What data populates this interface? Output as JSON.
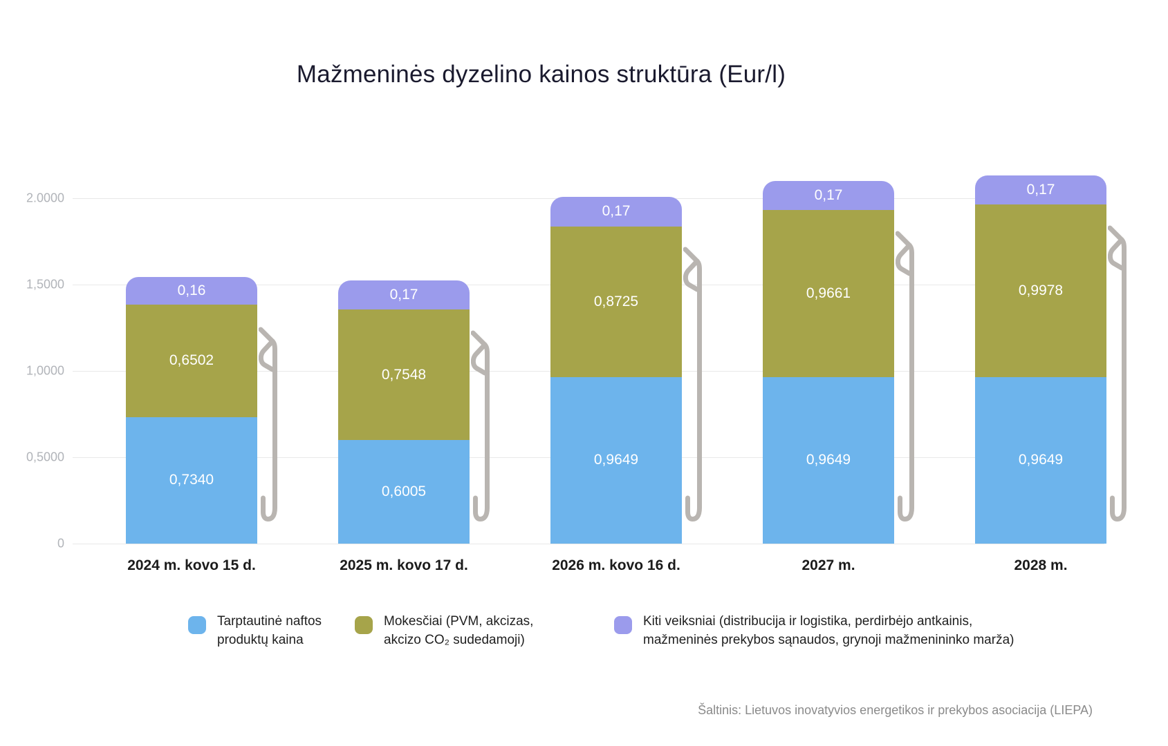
{
  "title": "Mažmeninės dyzelino kainos struktūra (Eur/l)",
  "source": "Šaltinis: Lietuvos inovatyvios energetikos ir prekybos asociacija (LIEPA)",
  "colors": {
    "blue": "#6db4ec",
    "olive": "#a6a44a",
    "purple": "#9b9bec",
    "nozzle": "#b9b5b1",
    "grid": "#e8e8e8"
  },
  "chart_data": {
    "type": "bar",
    "stacked": true,
    "title": "Mažmeninės dyzelino kainos struktūra (Eur/l)",
    "unit": "Eur/l",
    "grid": true,
    "legend_position": "bottom",
    "ylim": [
      0,
      2.0
    ],
    "yticks": [
      {
        "label": "2.0000",
        "value": 2.0
      },
      {
        "label": "1,5000",
        "value": 1.5
      },
      {
        "label": "1,0000",
        "value": 1.0
      },
      {
        "label": "0,5000",
        "value": 0.5
      },
      {
        "label": "0",
        "value": 0
      }
    ],
    "categories": [
      "2024 m. kovo 15 d.",
      "2025 m. kovo 17 d.",
      "2026 m. kovo 16 d.",
      "2027 m.",
      "2028 m."
    ],
    "series": [
      {
        "name": "Tarptautinė naftos produktų kaina",
        "color": "#6db4ec",
        "values": [
          0.734,
          0.6005,
          0.9649,
          0.9649,
          0.9649
        ],
        "display": [
          "0,7340",
          "0,6005",
          "0,9649",
          "0,9649",
          "0,9649"
        ]
      },
      {
        "name": "Mokesčiai (PVM, akcizas, akcizo CO₂ sudedamoji)",
        "color": "#a6a44a",
        "values": [
          0.6502,
          0.7548,
          0.8725,
          0.9661,
          0.9978
        ],
        "display": [
          "0,6502",
          "0,7548",
          "0,8725",
          "0,9661",
          "0,9978"
        ]
      },
      {
        "name": "Kiti veiksniai (distribucija ir logistika, perdirbėjo antkainis, mažmeninės prekybos sąnaudos, grynoji mažmenininko marža)",
        "color": "#9b9bec",
        "values": [
          0.16,
          0.17,
          0.17,
          0.17,
          0.17
        ],
        "display": [
          "0,16",
          "0,17",
          "0,17",
          "0,17",
          "0,17"
        ]
      }
    ]
  }
}
